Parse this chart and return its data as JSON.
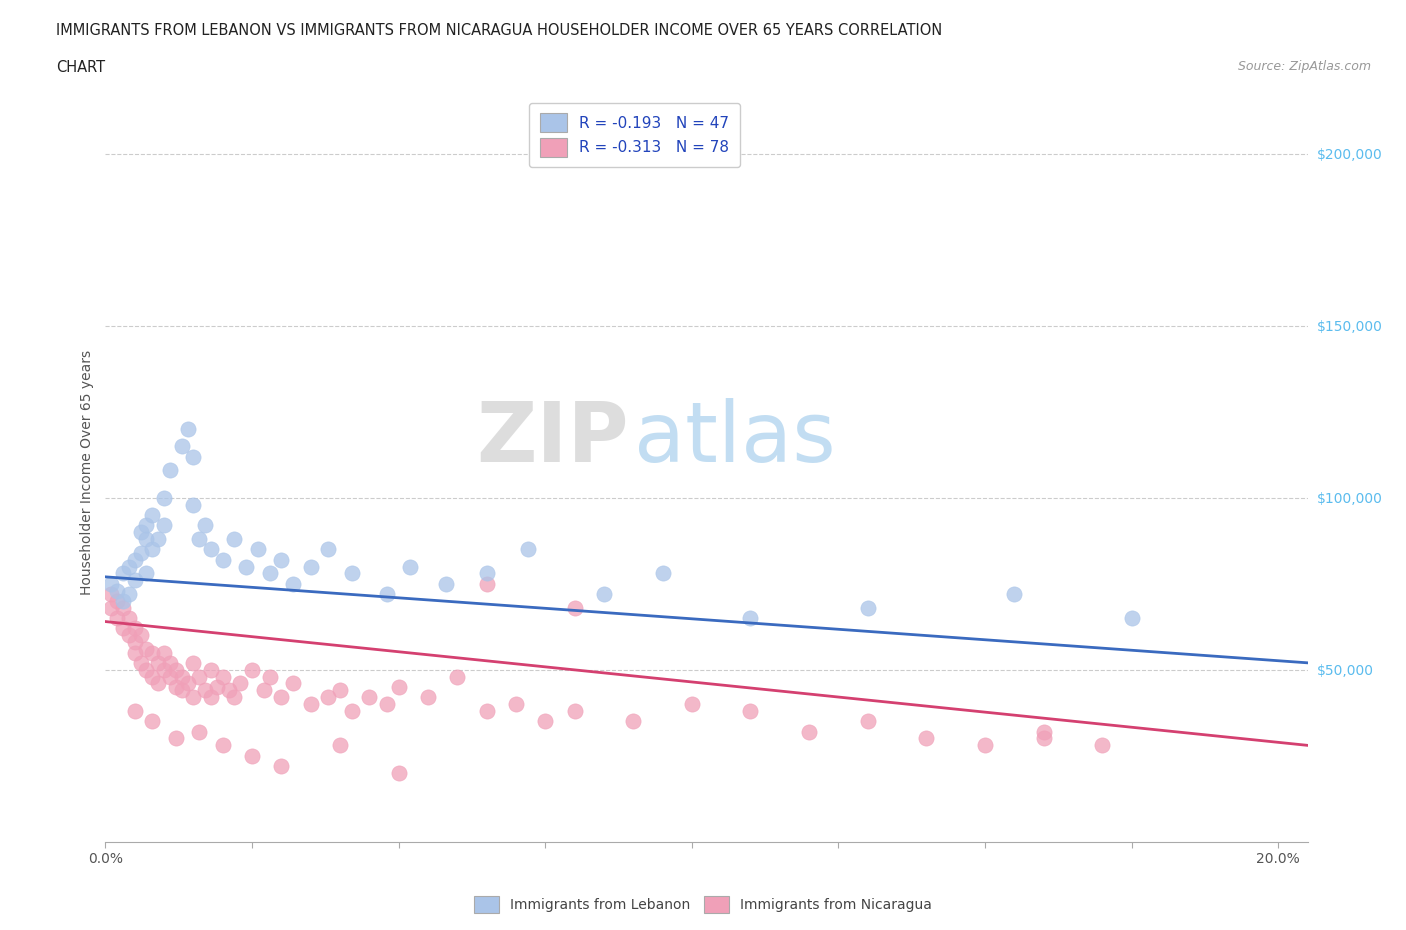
{
  "title_line1": "IMMIGRANTS FROM LEBANON VS IMMIGRANTS FROM NICARAGUA HOUSEHOLDER INCOME OVER 65 YEARS CORRELATION",
  "title_line2": "CHART",
  "source": "Source: ZipAtlas.com",
  "ylabel": "Householder Income Over 65 years",
  "xlim": [
    0.0,
    0.205
  ],
  "ylim": [
    0,
    215000
  ],
  "lebanon_color": "#aac4e8",
  "nicaragua_color": "#f0a0b8",
  "lebanon_line_color": "#3a6abf",
  "nicaragua_line_color": "#d44070",
  "ytick_color": "#5bbcee",
  "legend_label1": "R = -0.193   N = 47",
  "legend_label2": "R = -0.313   N = 78",
  "watermark_zip": "ZIP",
  "watermark_atlas": "atlas",
  "leb_x": [
    0.001,
    0.002,
    0.003,
    0.003,
    0.004,
    0.004,
    0.005,
    0.005,
    0.006,
    0.006,
    0.007,
    0.007,
    0.007,
    0.008,
    0.008,
    0.009,
    0.01,
    0.01,
    0.011,
    0.013,
    0.014,
    0.015,
    0.015,
    0.016,
    0.017,
    0.018,
    0.02,
    0.022,
    0.024,
    0.026,
    0.028,
    0.03,
    0.032,
    0.035,
    0.038,
    0.042,
    0.048,
    0.052,
    0.058,
    0.065,
    0.072,
    0.085,
    0.095,
    0.11,
    0.13,
    0.155,
    0.175
  ],
  "leb_y": [
    75000,
    73000,
    70000,
    78000,
    72000,
    80000,
    76000,
    82000,
    84000,
    90000,
    88000,
    92000,
    78000,
    95000,
    85000,
    88000,
    92000,
    100000,
    108000,
    115000,
    120000,
    112000,
    98000,
    88000,
    92000,
    85000,
    82000,
    88000,
    80000,
    85000,
    78000,
    82000,
    75000,
    80000,
    85000,
    78000,
    72000,
    80000,
    75000,
    78000,
    85000,
    72000,
    78000,
    65000,
    68000,
    72000,
    65000
  ],
  "nic_x": [
    0.001,
    0.001,
    0.002,
    0.002,
    0.003,
    0.003,
    0.004,
    0.004,
    0.005,
    0.005,
    0.005,
    0.006,
    0.006,
    0.007,
    0.007,
    0.008,
    0.008,
    0.009,
    0.009,
    0.01,
    0.01,
    0.011,
    0.011,
    0.012,
    0.012,
    0.013,
    0.013,
    0.014,
    0.015,
    0.015,
    0.016,
    0.017,
    0.018,
    0.018,
    0.019,
    0.02,
    0.021,
    0.022,
    0.023,
    0.025,
    0.027,
    0.028,
    0.03,
    0.032,
    0.035,
    0.038,
    0.04,
    0.042,
    0.045,
    0.048,
    0.05,
    0.055,
    0.06,
    0.065,
    0.07,
    0.075,
    0.08,
    0.09,
    0.1,
    0.11,
    0.12,
    0.13,
    0.14,
    0.15,
    0.16,
    0.17,
    0.005,
    0.008,
    0.012,
    0.016,
    0.02,
    0.025,
    0.03,
    0.04,
    0.05,
    0.065,
    0.08,
    0.16
  ],
  "nic_y": [
    68000,
    72000,
    65000,
    70000,
    62000,
    68000,
    60000,
    65000,
    58000,
    62000,
    55000,
    60000,
    52000,
    56000,
    50000,
    55000,
    48000,
    52000,
    46000,
    50000,
    55000,
    48000,
    52000,
    45000,
    50000,
    48000,
    44000,
    46000,
    52000,
    42000,
    48000,
    44000,
    42000,
    50000,
    45000,
    48000,
    44000,
    42000,
    46000,
    50000,
    44000,
    48000,
    42000,
    46000,
    40000,
    42000,
    44000,
    38000,
    42000,
    40000,
    45000,
    42000,
    48000,
    38000,
    40000,
    35000,
    38000,
    35000,
    40000,
    38000,
    32000,
    35000,
    30000,
    28000,
    32000,
    28000,
    38000,
    35000,
    30000,
    32000,
    28000,
    25000,
    22000,
    28000,
    20000,
    75000,
    68000,
    30000
  ],
  "leb_line_x": [
    0.0,
    0.205
  ],
  "leb_line_y": [
    77000,
    52000
  ],
  "nic_line_x": [
    0.0,
    0.205
  ],
  "nic_line_y": [
    64000,
    28000
  ]
}
